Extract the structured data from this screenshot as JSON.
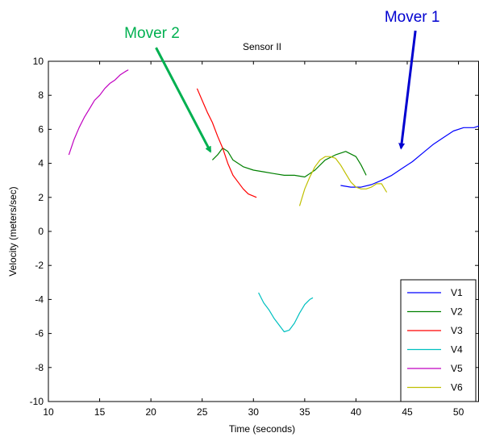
{
  "chart_data": {
    "type": "line",
    "title": "Sensor II",
    "xlabel": "Time (seconds)",
    "ylabel": "Velocity (meters/sec)",
    "xlim": [
      10,
      52
    ],
    "ylim": [
      -10,
      10
    ],
    "xticks": [
      10,
      15,
      20,
      25,
      30,
      35,
      40,
      45,
      50
    ],
    "yticks": [
      -10,
      -8,
      -6,
      -4,
      -2,
      0,
      2,
      4,
      6,
      8,
      10
    ],
    "grid": false,
    "legend": "bottom-right",
    "series": [
      {
        "name": "V1",
        "color": "#0000ff",
        "x": [
          38.5,
          39.5,
          40.5,
          41.5,
          42.5,
          43.5,
          44.5,
          45.5,
          46.5,
          47.5,
          48.5,
          49.5,
          50.5,
          51.5,
          52
        ],
        "y": [
          2.7,
          2.6,
          2.6,
          2.75,
          3.0,
          3.3,
          3.7,
          4.1,
          4.6,
          5.1,
          5.5,
          5.9,
          6.1,
          6.1,
          6.2
        ]
      },
      {
        "name": "V2",
        "color": "#008000",
        "x": [
          26.0,
          26.5,
          27.0,
          27.5,
          28.0,
          29.0,
          30.0,
          31.0,
          32.0,
          33.0,
          34.0,
          35.0,
          36.0,
          37.0,
          38.0,
          39.0,
          40.0,
          40.5,
          41.0
        ],
        "y": [
          4.2,
          4.5,
          4.9,
          4.7,
          4.2,
          3.8,
          3.6,
          3.5,
          3.4,
          3.3,
          3.3,
          3.2,
          3.6,
          4.2,
          4.5,
          4.7,
          4.4,
          3.9,
          3.3
        ]
      },
      {
        "name": "V3",
        "color": "#ff0000",
        "x": [
          24.5,
          25.0,
          25.5,
          26.0,
          26.5,
          27.0,
          27.5,
          28.0,
          28.5,
          29.0,
          29.5,
          30.3
        ],
        "y": [
          8.4,
          7.7,
          7.0,
          6.4,
          5.6,
          4.9,
          4.0,
          3.3,
          2.9,
          2.5,
          2.2,
          2.0
        ]
      },
      {
        "name": "V4",
        "color": "#00c0c0",
        "x": [
          30.5,
          31.0,
          31.5,
          32.0,
          32.5,
          33.0,
          33.5,
          34.0,
          34.5,
          35.0,
          35.5,
          35.8
        ],
        "y": [
          -3.6,
          -4.2,
          -4.6,
          -5.1,
          -5.5,
          -5.9,
          -5.8,
          -5.4,
          -4.8,
          -4.3,
          -4.0,
          -3.9
        ]
      },
      {
        "name": "V5",
        "color": "#c000c0",
        "x": [
          12.0,
          12.5,
          13.0,
          13.5,
          14.0,
          14.5,
          15.0,
          15.5,
          16.0,
          16.5,
          17.0,
          17.5,
          17.8
        ],
        "y": [
          4.5,
          5.4,
          6.1,
          6.7,
          7.2,
          7.7,
          8.0,
          8.4,
          8.7,
          8.9,
          9.2,
          9.4,
          9.5
        ]
      },
      {
        "name": "V6",
        "color": "#c0c000",
        "x": [
          34.5,
          35.0,
          35.5,
          36.0,
          36.5,
          37.0,
          37.5,
          38.0,
          38.5,
          39.0,
          39.5,
          40.0,
          40.5,
          41.0,
          41.5,
          42.0,
          42.5,
          43.0
        ],
        "y": [
          1.5,
          2.5,
          3.2,
          3.8,
          4.2,
          4.4,
          4.4,
          4.3,
          3.9,
          3.4,
          2.9,
          2.6,
          2.5,
          2.5,
          2.6,
          2.8,
          2.8,
          2.3
        ]
      }
    ],
    "annotations": [
      {
        "text": "Mover 2",
        "color": "#00b050",
        "arrow_from": [
          20.5,
          10.8
        ],
        "arrow_to": [
          25.8,
          4.7
        ]
      },
      {
        "text": "Mover 1",
        "color": "#0000d0",
        "arrow_from": [
          45.8,
          11.8
        ],
        "arrow_to": [
          44.4,
          4.9
        ]
      }
    ]
  }
}
